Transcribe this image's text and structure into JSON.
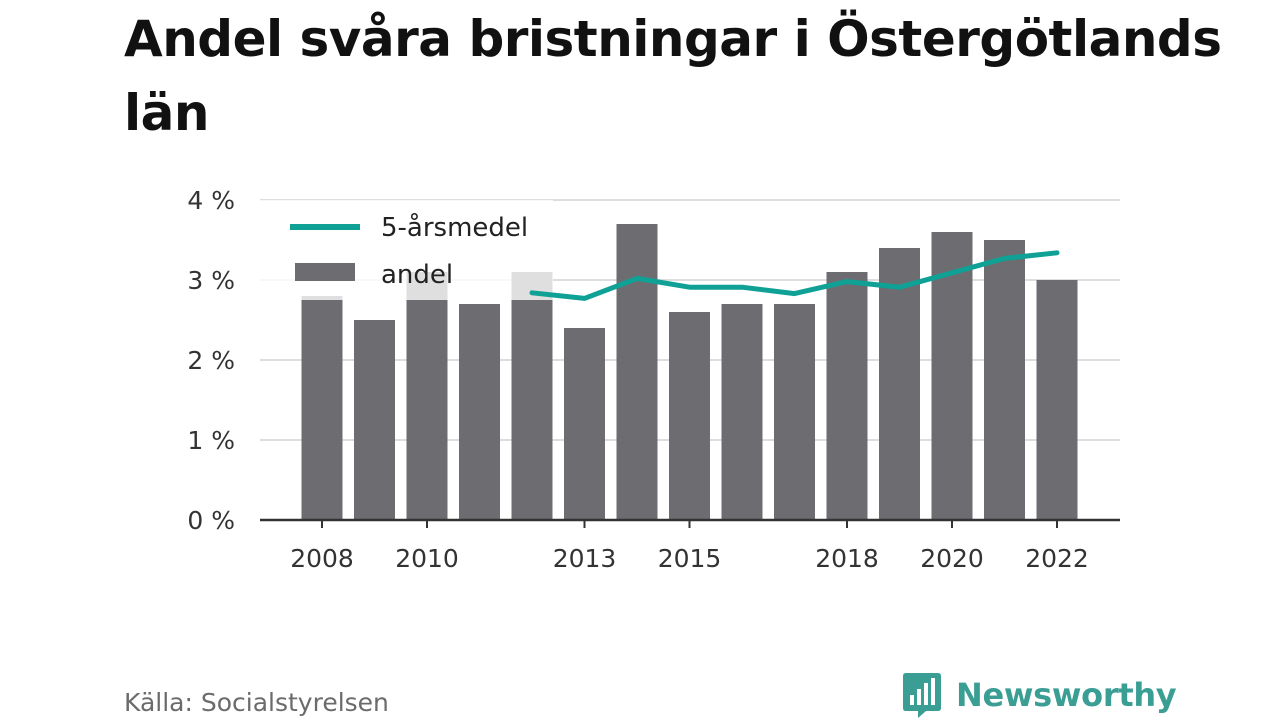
{
  "title": "Andel svåra bristningar i Östergötlands län",
  "source": "Källa: Socialstyrelsen",
  "brand": "Newsworthy",
  "colors": {
    "bars": "#6d6c71",
    "line": "#0fa195",
    "grid": "#dddddd",
    "axis": "#333333",
    "brand": "#3a9e94"
  },
  "chart_data": {
    "type": "bar",
    "categories": [
      "2008",
      "2009",
      "2010",
      "2011",
      "2012",
      "2013",
      "2014",
      "2015",
      "2016",
      "2017",
      "2018",
      "2019",
      "2020",
      "2021",
      "2022"
    ],
    "x_tick_labels": [
      "2008",
      "2010",
      "2013",
      "2015",
      "2018",
      "2020",
      "2022"
    ],
    "y_tick_labels": [
      "0 %",
      "1 %",
      "2 %",
      "3 %",
      "4 %"
    ],
    "ylim": [
      0,
      4
    ],
    "series": [
      {
        "name": "andel",
        "type": "bar",
        "values": [
          2.8,
          2.5,
          3.1,
          2.7,
          3.1,
          2.4,
          3.7,
          2.6,
          2.7,
          2.7,
          3.1,
          3.4,
          3.6,
          3.5,
          3.0
        ]
      },
      {
        "name": "5-årsmedel",
        "type": "line",
        "x": [
          "2012",
          "2013",
          "2014",
          "2015",
          "2016",
          "2017",
          "2018",
          "2019",
          "2020",
          "2021",
          "2022"
        ],
        "values": [
          2.84,
          2.77,
          3.02,
          2.91,
          2.91,
          2.83,
          2.98,
          2.91,
          3.09,
          3.27,
          3.34
        ]
      }
    ],
    "legend_position": "top-left",
    "grid": true
  }
}
